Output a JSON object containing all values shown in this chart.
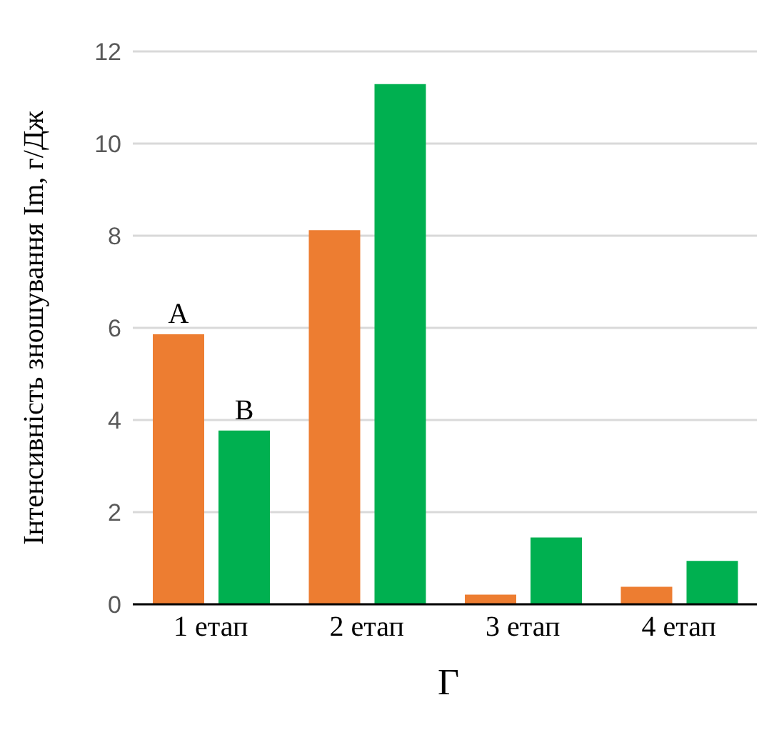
{
  "chart_data": {
    "type": "bar",
    "ylabel": "Інтенсивність зношування Im, г/Дж",
    "categories": [
      "1 етап",
      "2 етап",
      "3 етап",
      "4 етап"
    ],
    "series": [
      {
        "name": "A",
        "color": "#ed7d31",
        "values": [
          5.86,
          8.12,
          0.21,
          0.38
        ]
      },
      {
        "name": "B",
        "color": "#00b050",
        "values": [
          3.77,
          11.29,
          1.45,
          0.94
        ]
      }
    ],
    "ylim": [
      0,
      12
    ],
    "yticks": [
      0,
      2,
      4,
      6,
      8,
      10,
      12
    ],
    "grid": "y",
    "annotations": [
      "Г"
    ]
  }
}
